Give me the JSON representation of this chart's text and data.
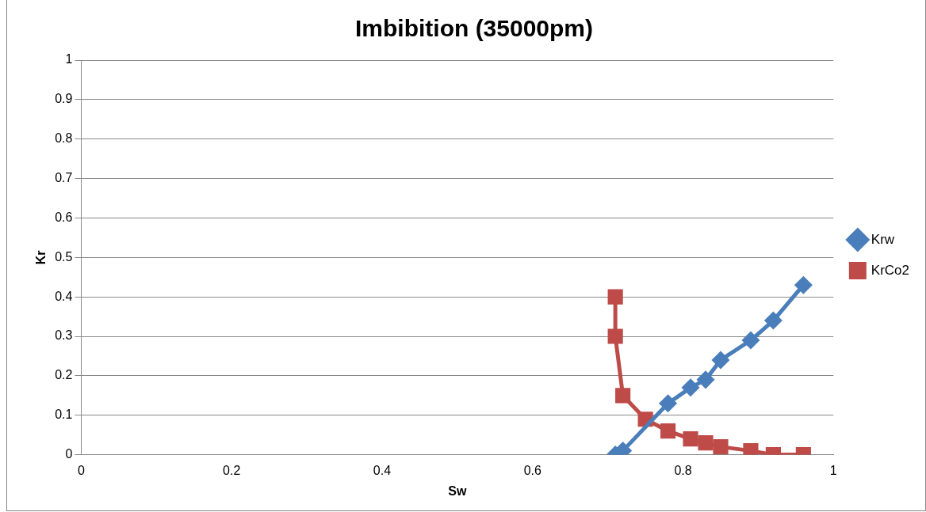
{
  "chart_data": {
    "type": "line",
    "title": "Imbibition (35000pm)",
    "xlabel": "Sw",
    "ylabel": "Kr",
    "xlim": [
      0,
      1
    ],
    "xticks": [
      0,
      0.2,
      0.4,
      0.6,
      0.8,
      1
    ],
    "ylim": [
      0,
      1
    ],
    "yticks": [
      0,
      0.1,
      0.2,
      0.3,
      0.4,
      0.5,
      0.6,
      0.7,
      0.8,
      0.9,
      1
    ],
    "grid": "y",
    "legend": "right",
    "line_style": "solid",
    "series": [
      {
        "name": "Krw",
        "color": "#4a7ebb",
        "marker": "diamond",
        "x": [
          0.71,
          0.72,
          0.78,
          0.81,
          0.83,
          0.85,
          0.89,
          0.92,
          0.96
        ],
        "values": [
          0,
          0.01,
          0.13,
          0.17,
          0.19,
          0.24,
          0.29,
          0.34,
          0.43
        ]
      },
      {
        "name": "KrCo2",
        "color": "#be4b48",
        "marker": "square",
        "x": [
          0.71,
          0.71,
          0.72,
          0.75,
          0.78,
          0.81,
          0.83,
          0.85,
          0.89,
          0.92,
          0.96
        ],
        "values": [
          0.4,
          0.3,
          0.15,
          0.09,
          0.06,
          0.04,
          0.03,
          0.02,
          0.01,
          0,
          0
        ]
      }
    ]
  }
}
